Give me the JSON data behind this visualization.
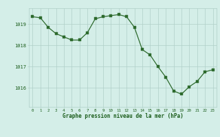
{
  "x": [
    0,
    1,
    2,
    3,
    4,
    5,
    6,
    7,
    8,
    9,
    10,
    11,
    12,
    13,
    14,
    15,
    16,
    17,
    18,
    19,
    20,
    21,
    22,
    23
  ],
  "y": [
    1019.35,
    1019.3,
    1018.85,
    1018.55,
    1018.4,
    1018.25,
    1018.25,
    1018.6,
    1019.25,
    1019.35,
    1019.4,
    1019.45,
    1019.35,
    1018.85,
    1017.8,
    1017.55,
    1017.0,
    1016.5,
    1015.85,
    1015.7,
    1016.05,
    1016.3,
    1016.75,
    1016.85
  ],
  "line_color": "#2d6a2d",
  "marker_color": "#2d6a2d",
  "bg_color": "#d4eee8",
  "grid_color": "#b0cfc8",
  "axis_label_color": "#1a5c1a",
  "tick_label_color": "#1a5c1a",
  "xlabel": "Graphe pression niveau de la mer (hPa)",
  "yticks": [
    1016,
    1017,
    1018,
    1019
  ],
  "ylim": [
    1015.1,
    1019.75
  ],
  "xlim": [
    -0.5,
    23.5
  ]
}
